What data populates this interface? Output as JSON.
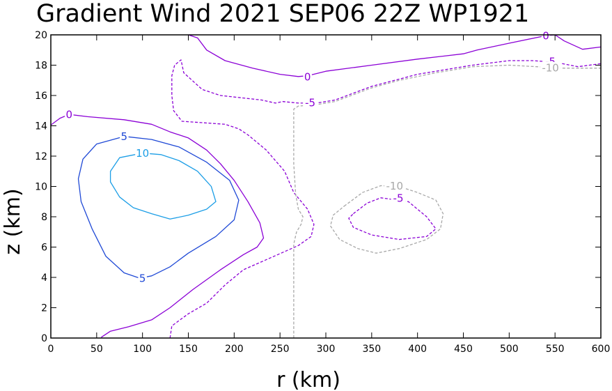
{
  "chart_data": {
    "type": "contour",
    "title": "Gradient Wind 2021 SEP06 22Z  WP1921",
    "xlabel": "r (km)",
    "ylabel": "z (km)",
    "xlim": [
      0,
      600
    ],
    "ylim": [
      0,
      20
    ],
    "xticks": [
      0,
      50,
      100,
      150,
      200,
      250,
      300,
      350,
      400,
      450,
      500,
      550,
      600
    ],
    "yticks": [
      0,
      2,
      4,
      6,
      8,
      10,
      12,
      14,
      16,
      18,
      20
    ],
    "grid": false,
    "contours": [
      {
        "level": "0",
        "color": "#8b00d6",
        "dashed": false,
        "points": [
          [
            0,
            14.05
          ],
          [
            10,
            14.5
          ],
          [
            20,
            14.75
          ],
          [
            40,
            14.6
          ],
          [
            80,
            14.4
          ],
          [
            110,
            14.1
          ],
          [
            130,
            13.6
          ],
          [
            150,
            13.2
          ],
          [
            170,
            12.4
          ],
          [
            185,
            11.5
          ],
          [
            200,
            10.4
          ],
          [
            215,
            9.0
          ],
          [
            228,
            7.6
          ],
          [
            232,
            6.6
          ],
          [
            225,
            6.0
          ],
          [
            210,
            5.5
          ],
          [
            185,
            4.5
          ],
          [
            155,
            3.2
          ],
          [
            130,
            2.0
          ],
          [
            110,
            1.2
          ],
          [
            85,
            0.75
          ],
          [
            65,
            0.45
          ],
          [
            55,
            0.05
          ]
        ]
      },
      {
        "level": "0",
        "color": "#8b00d6",
        "dashed": false,
        "points": [
          [
            150,
            20.0
          ],
          [
            160,
            19.8
          ],
          [
            170,
            19.0
          ],
          [
            190,
            18.3
          ],
          [
            220,
            17.8
          ],
          [
            250,
            17.4
          ],
          [
            270,
            17.25
          ],
          [
            280,
            17.3
          ],
          [
            300,
            17.6
          ],
          [
            350,
            18.0
          ],
          [
            400,
            18.4
          ],
          [
            450,
            18.75
          ],
          [
            465,
            19.0
          ],
          [
            500,
            19.45
          ],
          [
            540,
            19.95
          ],
          [
            550,
            20.0
          ],
          [
            560,
            19.6
          ],
          [
            580,
            19.05
          ],
          [
            600,
            19.2
          ]
        ]
      },
      {
        "level": "5",
        "color": "#1f49d6",
        "dashed": false,
        "points": [
          [
            80,
            13.3
          ],
          [
            110,
            13.1
          ],
          [
            140,
            12.6
          ],
          [
            170,
            11.6
          ],
          [
            195,
            10.4
          ],
          [
            205,
            9.1
          ],
          [
            200,
            7.8
          ],
          [
            180,
            6.7
          ],
          [
            150,
            5.6
          ],
          [
            130,
            4.7
          ],
          [
            110,
            4.1
          ],
          [
            97,
            3.95
          ],
          [
            80,
            4.3
          ],
          [
            60,
            5.4
          ],
          [
            45,
            7.2
          ],
          [
            33,
            9.0
          ],
          [
            30,
            10.5
          ],
          [
            35,
            11.8
          ],
          [
            50,
            12.8
          ],
          [
            80,
            13.3
          ]
        ]
      },
      {
        "level": "10",
        "color": "#1c9ee6",
        "dashed": false,
        "points": [
          [
            100,
            12.2
          ],
          [
            120,
            12.1
          ],
          [
            140,
            11.7
          ],
          [
            160,
            11.0
          ],
          [
            175,
            10.0
          ],
          [
            180,
            9.0
          ],
          [
            170,
            8.5
          ],
          [
            150,
            8.1
          ],
          [
            130,
            7.85
          ],
          [
            110,
            8.2
          ],
          [
            90,
            8.6
          ],
          [
            75,
            9.3
          ],
          [
            65,
            10.3
          ],
          [
            65,
            11.0
          ],
          [
            75,
            11.9
          ],
          [
            100,
            12.2
          ]
        ]
      },
      {
        "level": "-5",
        "color": "#8b00d6",
        "dashed": true,
        "points": [
          [
            130,
            0.0
          ],
          [
            132,
            0.8
          ],
          [
            150,
            1.6
          ],
          [
            170,
            2.3
          ],
          [
            190,
            3.5
          ],
          [
            210,
            4.5
          ],
          [
            240,
            5.3
          ],
          [
            270,
            6.1
          ],
          [
            284,
            6.7
          ],
          [
            287,
            7.5
          ],
          [
            280,
            8.5
          ],
          [
            265,
            9.6
          ],
          [
            255,
            11.0
          ],
          [
            235,
            12.4
          ],
          [
            215,
            13.4
          ],
          [
            205,
            13.8
          ],
          [
            190,
            14.1
          ],
          [
            143,
            14.3
          ],
          [
            134,
            15.0
          ],
          [
            132,
            16.0
          ],
          [
            132,
            17.3
          ],
          [
            135,
            18.0
          ],
          [
            140,
            18.25
          ],
          [
            142,
            18.35
          ],
          [
            145,
            17.5
          ],
          [
            165,
            16.4
          ],
          [
            185,
            16.0
          ],
          [
            230,
            15.7
          ],
          [
            245,
            15.5
          ],
          [
            253,
            15.6
          ],
          [
            270,
            15.5
          ],
          [
            290,
            15.5
          ],
          [
            310,
            15.7
          ],
          [
            350,
            16.6
          ],
          [
            400,
            17.4
          ],
          [
            440,
            17.8
          ],
          [
            460,
            18.0
          ],
          [
            500,
            18.3
          ],
          [
            525,
            18.3
          ],
          [
            550,
            18.2
          ],
          [
            575,
            17.9
          ],
          [
            600,
            18.1
          ]
        ]
      },
      {
        "level": "-5",
        "color": "#8b00d6",
        "dashed": true,
        "points": [
          [
            330,
            8.2
          ],
          [
            345,
            8.9
          ],
          [
            360,
            9.25
          ],
          [
            390,
            9.0
          ],
          [
            410,
            8.0
          ],
          [
            420,
            7.2
          ],
          [
            410,
            6.7
          ],
          [
            380,
            6.5
          ],
          [
            350,
            6.8
          ],
          [
            330,
            7.3
          ],
          [
            325,
            7.9
          ],
          [
            330,
            8.2
          ]
        ]
      },
      {
        "level": "-10",
        "color": "#a8a8a8",
        "dashed": true,
        "points": [
          [
            265,
            0.0
          ],
          [
            265,
            6.2
          ],
          [
            268,
            7.0
          ],
          [
            273,
            7.5
          ],
          [
            275,
            8.0
          ],
          [
            270,
            8.5
          ],
          [
            267,
            9.5
          ],
          [
            265,
            11.5
          ],
          [
            265,
            13.0
          ],
          [
            265,
            14.5
          ],
          [
            265,
            15.1
          ],
          [
            270,
            15.3
          ],
          [
            290,
            15.4
          ],
          [
            310,
            15.6
          ],
          [
            350,
            16.5
          ],
          [
            380,
            17.0
          ],
          [
            420,
            17.5
          ],
          [
            460,
            17.9
          ],
          [
            500,
            18.0
          ],
          [
            530,
            17.9
          ],
          [
            560,
            17.8
          ],
          [
            600,
            17.8
          ]
        ]
      },
      {
        "level": "-10",
        "color": "#a8a8a8",
        "dashed": true,
        "points": [
          [
            320,
            8.7
          ],
          [
            340,
            9.6
          ],
          [
            360,
            10.05
          ],
          [
            380,
            10.0
          ],
          [
            400,
            9.6
          ],
          [
            420,
            9.1
          ],
          [
            428,
            8.2
          ],
          [
            425,
            7.2
          ],
          [
            410,
            6.5
          ],
          [
            380,
            5.9
          ],
          [
            355,
            5.6
          ],
          [
            335,
            5.9
          ],
          [
            315,
            6.5
          ],
          [
            305,
            7.4
          ],
          [
            308,
            8.1
          ],
          [
            320,
            8.7
          ]
        ]
      }
    ],
    "labels": [
      {
        "text": "0",
        "x": 20,
        "y": 14.75,
        "color": "#8b00d6"
      },
      {
        "text": "0",
        "x": 280,
        "y": 17.25,
        "color": "#8b00d6"
      },
      {
        "text": "0",
        "x": 540,
        "y": 19.95,
        "color": "#8b00d6"
      },
      {
        "text": "5",
        "x": 80,
        "y": 13.3,
        "color": "#1f49d6"
      },
      {
        "text": "5",
        "x": 100,
        "y": 3.95,
        "color": "#1f49d6"
      },
      {
        "text": "10",
        "x": 100,
        "y": 12.2,
        "color": "#1c9ee6"
      },
      {
        "text": "-5",
        "x": 283,
        "y": 15.55,
        "color": "#8b00d6"
      },
      {
        "text": "-5",
        "x": 545,
        "y": 18.25,
        "color": "#8b00d6"
      },
      {
        "text": "-5",
        "x": 379,
        "y": 9.25,
        "color": "#8b00d6"
      },
      {
        "text": "-10",
        "x": 375,
        "y": 10.05,
        "color": "#a8a8a8"
      },
      {
        "text": "-10",
        "x": 545,
        "y": 17.85,
        "color": "#a8a8a8"
      }
    ]
  }
}
